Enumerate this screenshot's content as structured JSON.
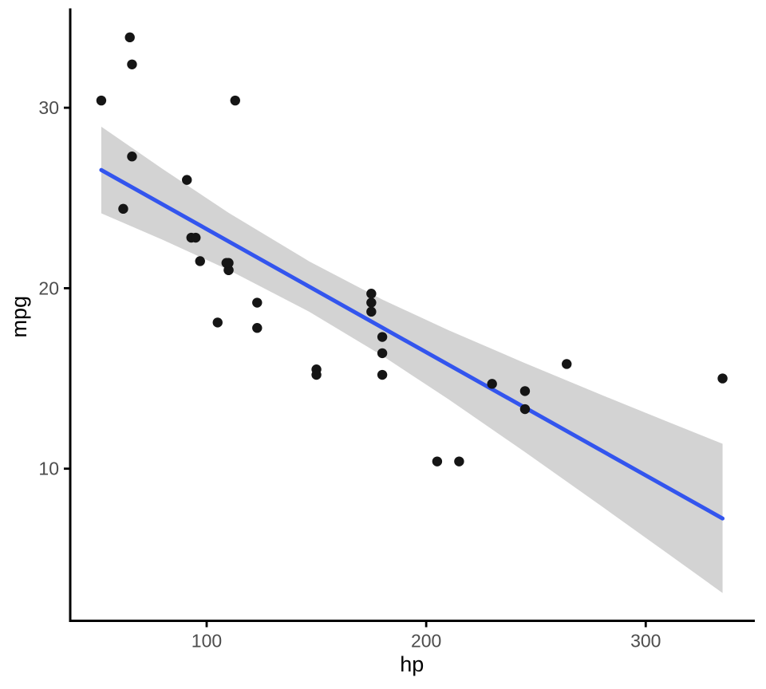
{
  "figure": {
    "background": "#FFFFFF"
  },
  "chart_data": {
    "type": "scatter",
    "title": "",
    "xlabel": "hp",
    "ylabel": "mpg",
    "x_ticks": [
      100,
      200,
      300
    ],
    "y_ticks": [
      10,
      20,
      30
    ],
    "x_domain": [
      37.85,
      349.15
    ],
    "y_domain": [
      1.57,
      35.44
    ],
    "grid": "off",
    "legend": "none",
    "theme": "classic-white-no-gridlines",
    "points": [
      [
        110,
        21.0
      ],
      [
        110,
        21.0
      ],
      [
        93,
        22.8
      ],
      [
        110,
        21.4
      ],
      [
        175,
        18.7
      ],
      [
        105,
        18.1
      ],
      [
        245,
        14.3
      ],
      [
        62,
        24.4
      ],
      [
        95,
        22.8
      ],
      [
        123,
        19.2
      ],
      [
        123,
        17.8
      ],
      [
        180,
        16.4
      ],
      [
        180,
        17.3
      ],
      [
        180,
        15.2
      ],
      [
        205,
        10.4
      ],
      [
        215,
        10.4
      ],
      [
        230,
        14.7
      ],
      [
        66,
        32.4
      ],
      [
        52,
        30.4
      ],
      [
        65,
        33.9
      ],
      [
        97,
        21.5
      ],
      [
        150,
        15.5
      ],
      [
        150,
        15.2
      ],
      [
        245,
        13.3
      ],
      [
        175,
        19.2
      ],
      [
        66,
        27.3
      ],
      [
        91,
        26.0
      ],
      [
        113,
        30.4
      ],
      [
        264,
        15.8
      ],
      [
        175,
        19.7
      ],
      [
        335,
        15.0
      ],
      [
        109,
        21.4
      ]
    ],
    "smooth": {
      "method": "lm",
      "intercept": 30.0989,
      "slope": -0.06823,
      "x_start": 52,
      "x_end": 335,
      "ribbon_x": [
        52,
        80,
        110,
        146.69,
        180,
        210,
        245,
        280,
        310,
        335
      ],
      "ribbon_upper": [
        28.95,
        26.6,
        24.18,
        21.49,
        19.37,
        17.68,
        15.85,
        14.08,
        12.6,
        11.38
      ],
      "ribbon_lower": [
        24.15,
        22.68,
        21.01,
        18.7,
        16.26,
        13.86,
        10.92,
        7.91,
        5.3,
        3.11
      ]
    },
    "colors": {
      "point": "#151515",
      "line": "#3355EE",
      "ribbon": "#D3D3D3",
      "axis_line": "#000000",
      "tick_label": "#4D4D4D",
      "axis_title": "#000000"
    }
  }
}
